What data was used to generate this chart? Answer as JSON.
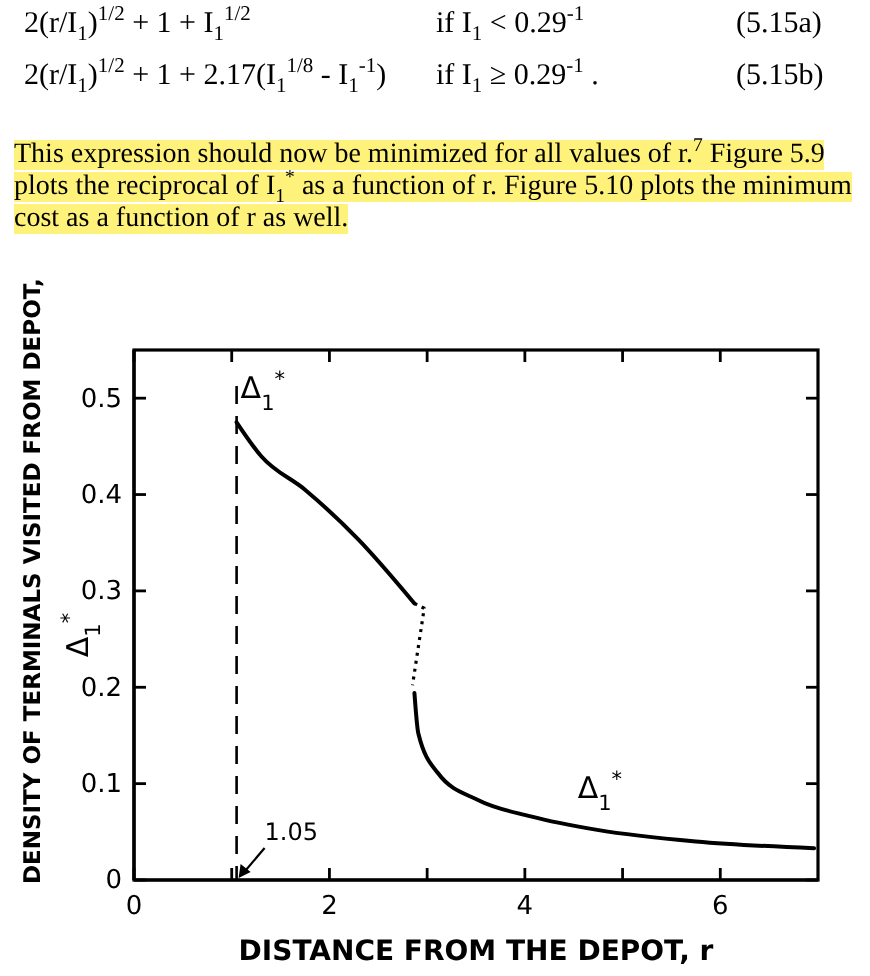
{
  "chart_data": {
    "type": "line",
    "xlabel": "DISTANCE FROM THE DEPOT, r",
    "ylabel": "DENSITY OF TERMINALS VISITED FROM DEPOT, Δ$_{1}$$^{*}$",
    "xlim": [
      0,
      7
    ],
    "ylim": [
      0,
      0.55
    ],
    "xticks": [
      0,
      {
        "value": 1,
        "label": null
      },
      2,
      {
        "value": 3,
        "label": null
      },
      4,
      {
        "value": 5,
        "label": null
      },
      6
    ],
    "yticks": [
      0,
      0.1,
      0.2,
      0.3,
      0.4,
      0.5
    ],
    "grid": false,
    "marker": "none",
    "series": [
      {
        "color": "#000000",
        "line_style": "solid",
        "x": [
          1.05,
          1.3,
          1.75,
          2.3,
          2.87
        ],
        "values": [
          0.475,
          0.44,
          0.405,
          0.353,
          0.287
        ]
      },
      {
        "color": "#000000",
        "line_style": "dotted",
        "x": [
          2.87,
          2.97,
          2.85
        ],
        "values": [
          0.287,
          0.282,
          0.202
        ]
      },
      {
        "color": "#000000",
        "line_style": "solid",
        "x": [
          2.87,
          2.91,
          3.11,
          3.52,
          4.06,
          4.74,
          5.75,
          6.96
        ],
        "values": [
          0.194,
          0.152,
          0.111,
          0.083,
          0.066,
          0.052,
          0.04,
          0.033
        ]
      }
    ],
    "ref_lines": [
      {
        "axis": "x",
        "value": 1.05,
        "label": "1.05",
        "line_style": "dashed",
        "color": "#000000"
      }
    ],
    "annotations": [
      "2(r/I$_{1}$)$^{1/2}$ + 1 + I$_{1}$$^{1/2}$",
      "if I$_{1}$ < 0.29$^{-1}$",
      "(5.15a)",
      "2(r/I$_{1}$)$^{1/2}$ + 1 + 2.17(I$_{1}$$^{1/8}$ - I$_{1}$$^{-1}$)",
      "if I$_{1}$ ≥ 0.29$^{-1}$ .",
      "(5.15b)",
      "This expression should now be minimized for all values of r.$^{7}$ Figure 5.9 plots the reciprocal of I$_{1}$$^{*}$ as a function of r. Figure 5.10 plots the minimum cost as a function of r as well.",
      {
        "text": "Δ$_{1}$$^{*}$",
        "x": 1.05,
        "y": 0.475
      },
      {
        "text": "Δ$_{1}$$^{*}$",
        "x": 4.5,
        "y": 0.06
      }
    ]
  }
}
